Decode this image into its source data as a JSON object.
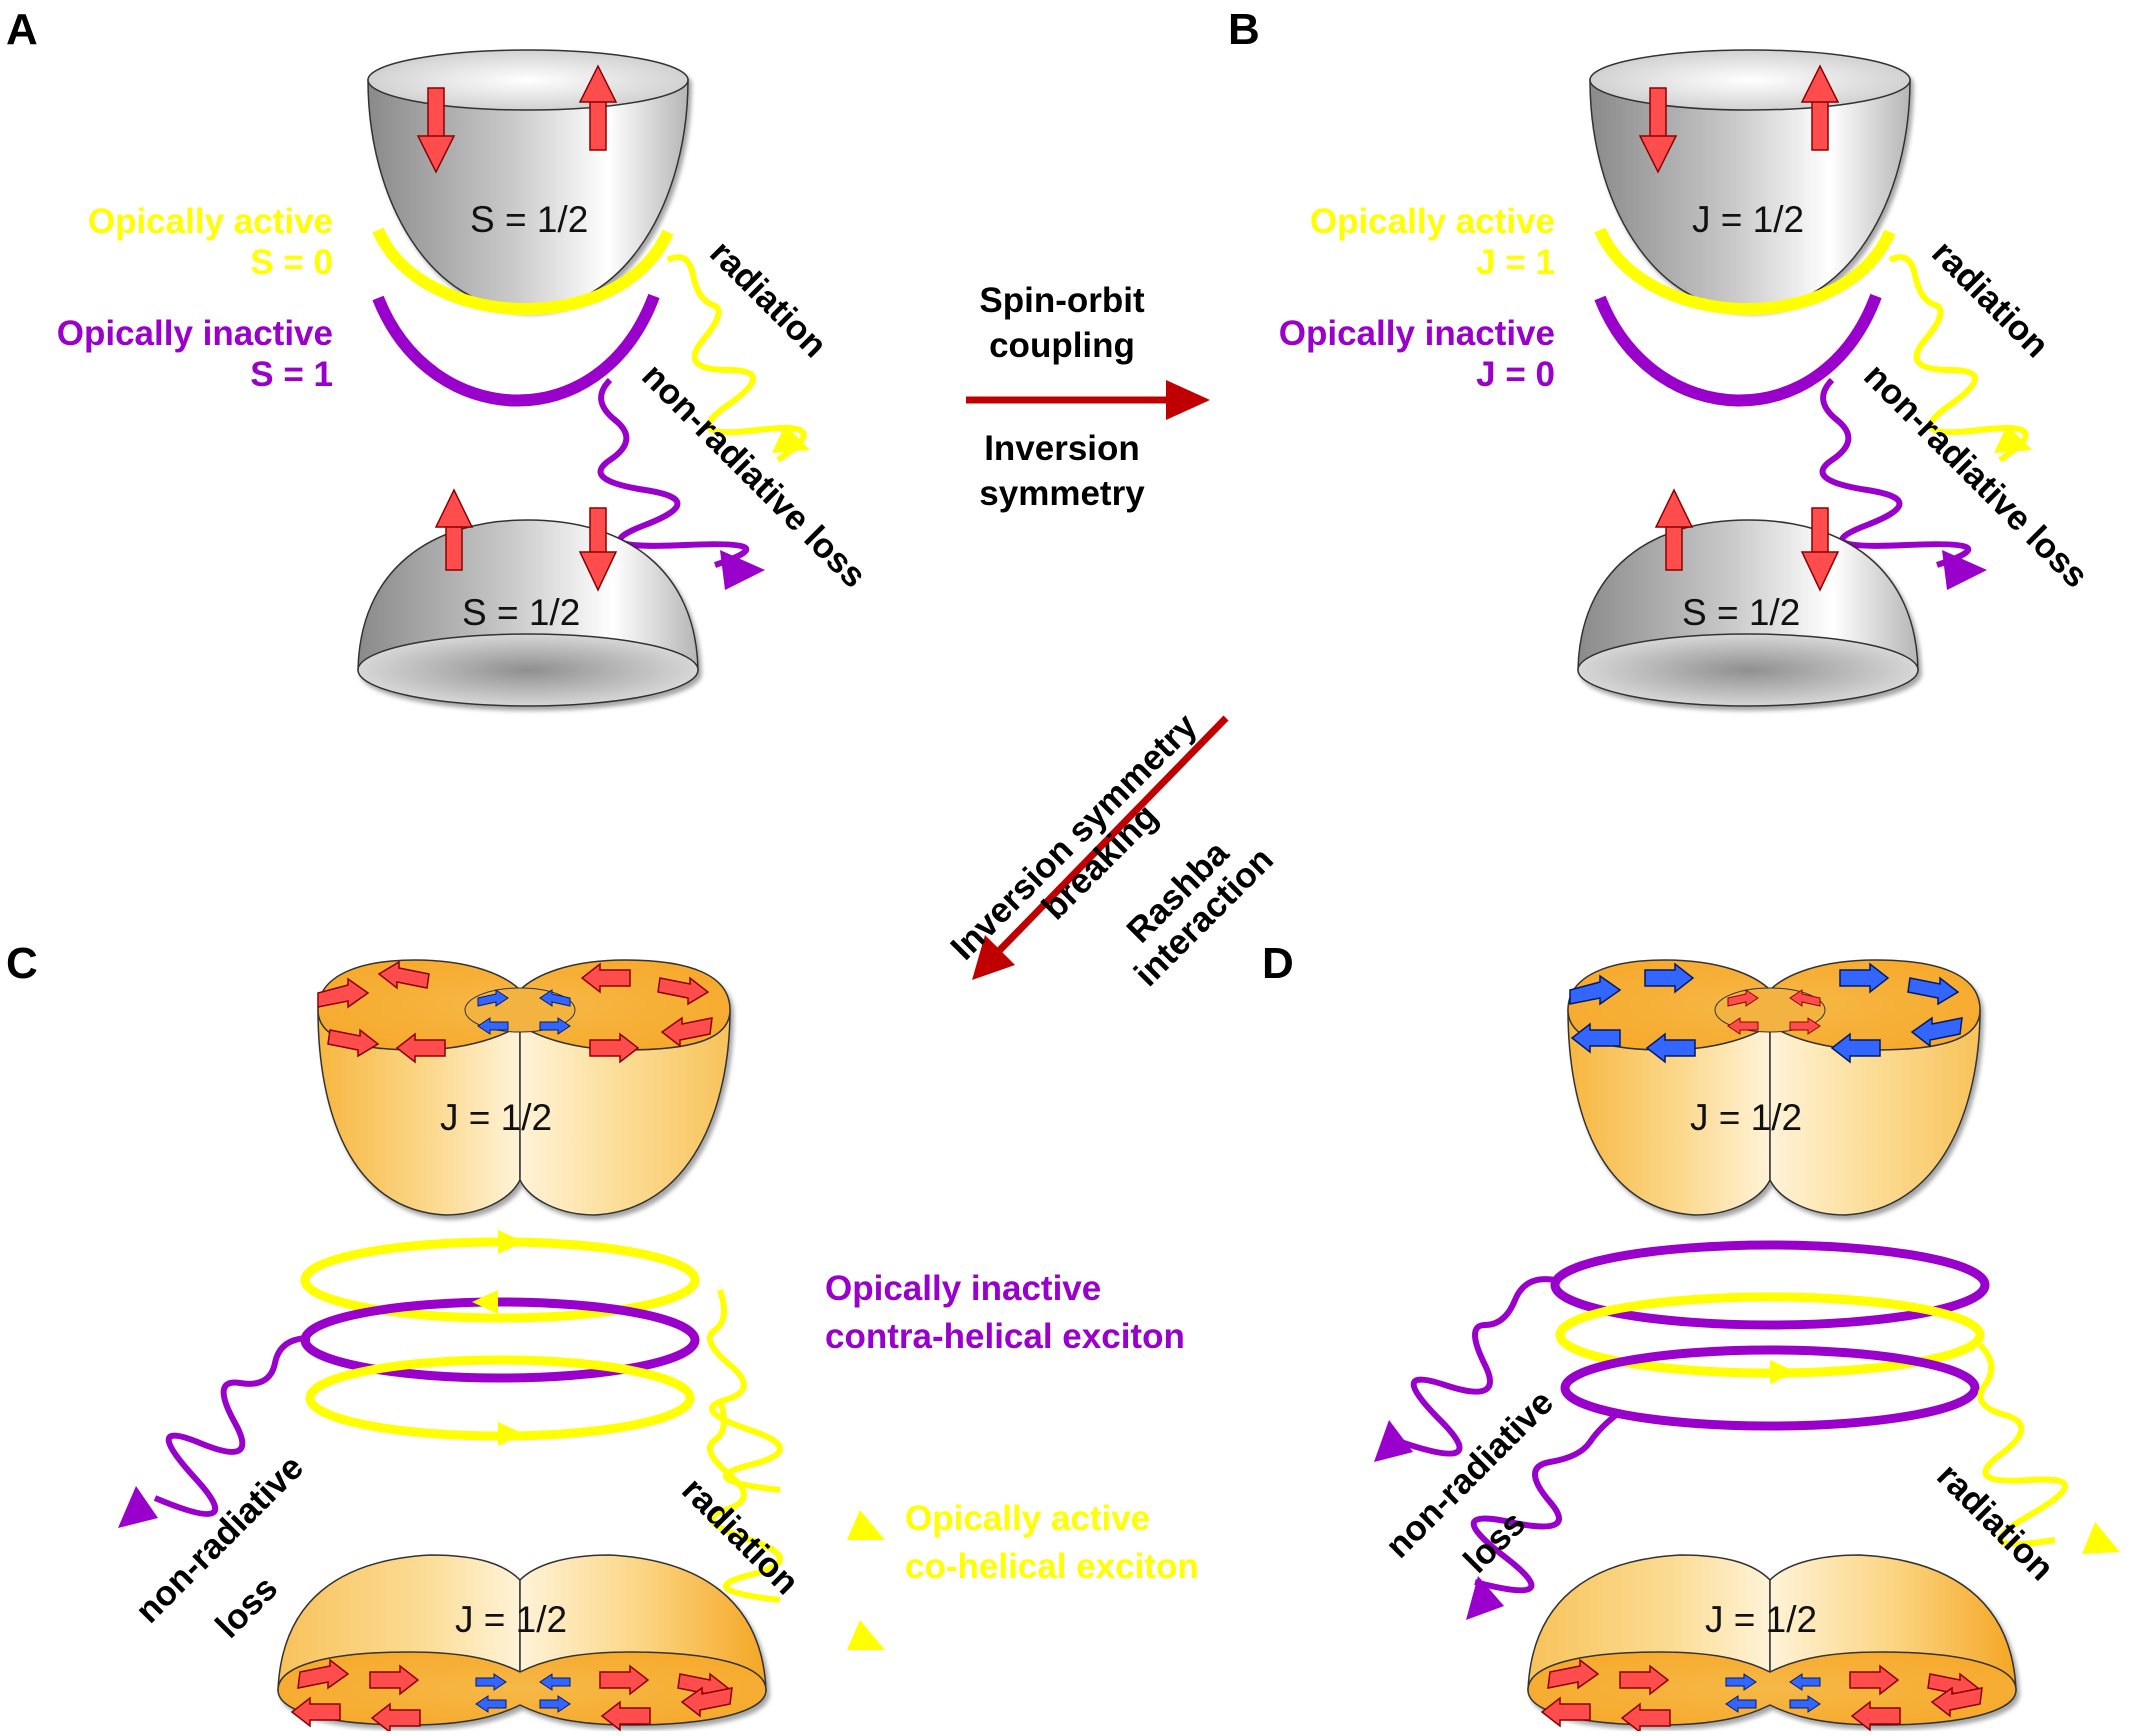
{
  "panels": {
    "A": {
      "letter": "A",
      "upper_band": "S = 1/2",
      "lower_band": "S = 1/2",
      "active_label_1": "Opically active",
      "active_label_2": "S = 0",
      "inactive_label_1": "Opically inactive",
      "inactive_label_2": "S = 1",
      "radiation": "radiation",
      "nonrad": "non-radiative loss"
    },
    "B": {
      "letter": "B",
      "upper_band": "J = 1/2",
      "lower_band": "S = 1/2",
      "active_label_1": "Opically active",
      "active_label_2": "J = 1",
      "inactive_label_1": "Opically inactive",
      "inactive_label_2": "J = 0",
      "radiation": "radiation",
      "nonrad": "non-radiative loss"
    },
    "C": {
      "letter": "C",
      "upper_band": "J = 1/2",
      "lower_band": "J = 1/2",
      "inactive_label_1": "Opically inactive",
      "inactive_label_2": "contra-helical exciton",
      "active_label_1": "Opically active",
      "active_label_2": "co-helical exciton",
      "nonrad_1": "non-radiative",
      "nonrad_2": "loss",
      "radiation": "radiation"
    },
    "D": {
      "letter": "D",
      "upper_band": "J = 1/2",
      "lower_band": "J = 1/2",
      "nonrad_1": "non-radiative",
      "nonrad_2": "loss",
      "radiation": "radiation"
    }
  },
  "transitions": {
    "horizontal_top_1": "Spin-orbit",
    "horizontal_top_2": "coupling",
    "horizontal_bottom_1": "Inversion",
    "horizontal_bottom_2": "symmetry",
    "diagonal_top_1": "Inversion symmetry",
    "diagonal_top_2": "breaking",
    "diagonal_bottom_1": "Rashba",
    "diagonal_bottom_2": "interaction"
  },
  "colors": {
    "active": "#ffff00",
    "inactive": "#9900cc",
    "arrow": "#c00000",
    "spin_red": "#ff4d4d",
    "spin_blue": "#3366ff"
  }
}
